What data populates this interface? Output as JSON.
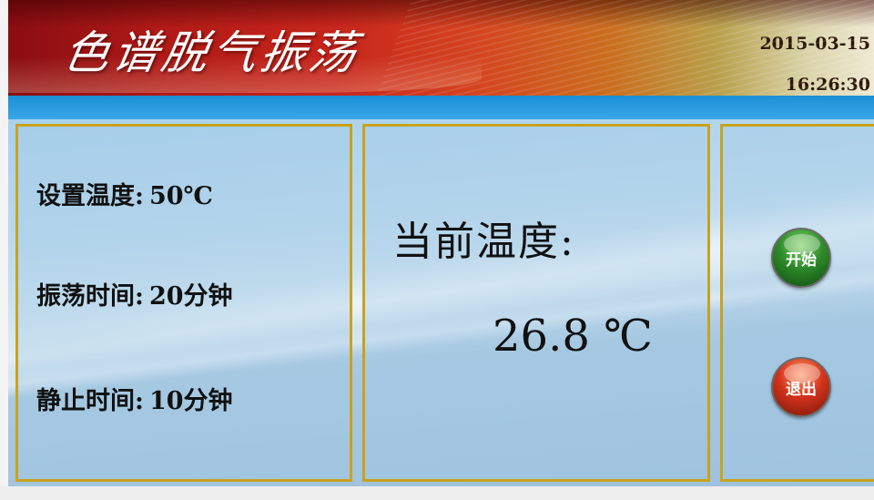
{
  "header": {
    "title": "色谱脱气振荡",
    "date": "2015-03-15",
    "time": "16:26:30"
  },
  "settings": {
    "set_temp_label": "设置温度:",
    "set_temp_value": "50℃",
    "shake_time_label": "振荡时间:",
    "shake_time_value": "20分钟",
    "rest_time_label": "静止时间:",
    "rest_time_value": "10分钟"
  },
  "current": {
    "label": "当前温度:",
    "value": "26.8 ℃"
  },
  "buttons": {
    "start_label": "开始",
    "exit_label": "退出"
  },
  "colors": {
    "header_red": "#b01a17",
    "band_blue": "#1a8fd6",
    "panel_border": "#c9a21c",
    "start_green": "#2e8a2a",
    "exit_red": "#d3331c"
  }
}
